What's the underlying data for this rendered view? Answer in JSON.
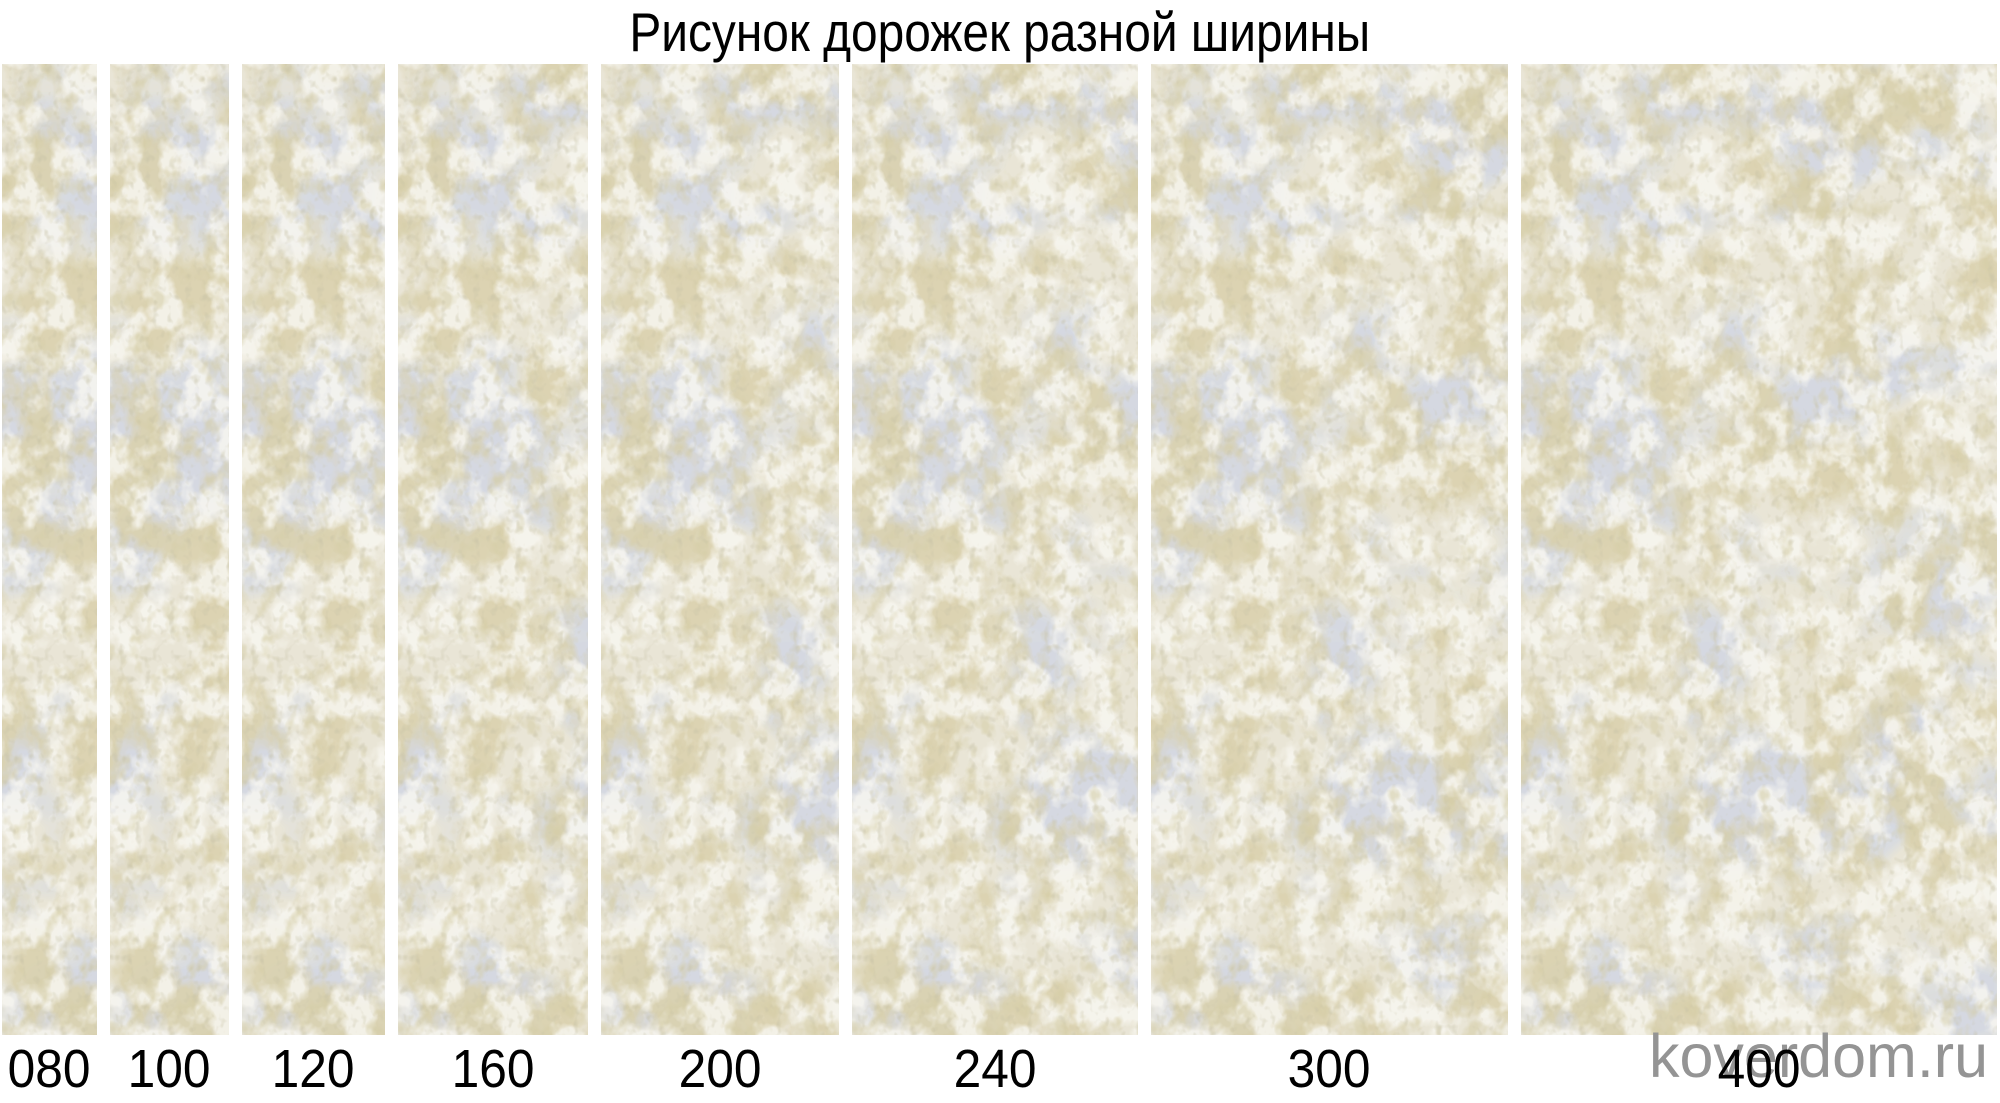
{
  "title": "Рисунок дорожек разной ширины",
  "watermark": "koverdom.ru",
  "strips": [
    {
      "label": "080",
      "width_cm": 80
    },
    {
      "label": "100",
      "width_cm": 100
    },
    {
      "label": "120",
      "width_cm": 120
    },
    {
      "label": "160",
      "width_cm": 160
    },
    {
      "label": "200",
      "width_cm": 200
    },
    {
      "label": "240",
      "width_cm": 240
    },
    {
      "label": "300",
      "width_cm": 300
    },
    {
      "label": "400",
      "width_cm": 400
    }
  ],
  "colors": {
    "background": "#ffffff",
    "title_text": "#000000",
    "label_text": "#000000",
    "watermark_text": "#949494",
    "texture_base": "#e9e5d6",
    "texture_blue": "#a8b0c2",
    "texture_gold": "#b2a269",
    "texture_cream": "#f0ede0",
    "texture_gold_fine": "#a89a5e",
    "texture_grain": "#8f8760"
  }
}
